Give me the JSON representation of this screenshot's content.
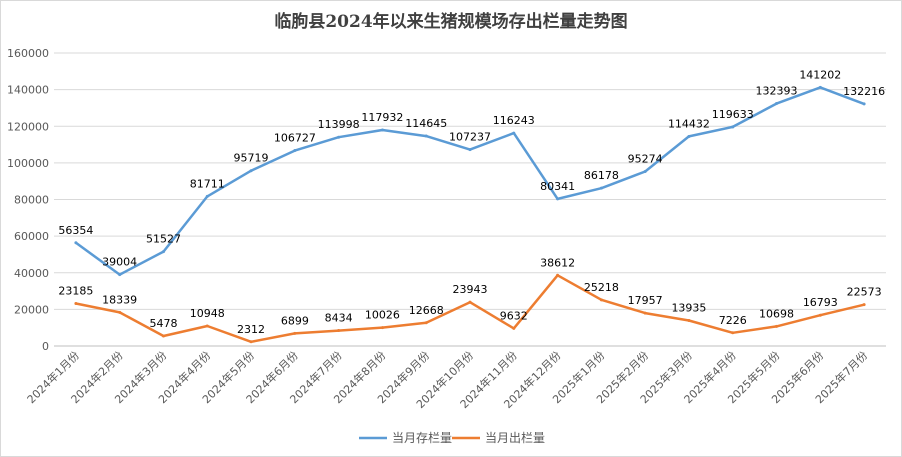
{
  "chart_data": {
    "type": "line",
    "title": "临朐县2024年以来生猪规模场存出栏量走势图",
    "xlabel": "",
    "ylabel": "",
    "ylim": [
      0,
      160000
    ],
    "yticks": [
      0,
      20000,
      40000,
      60000,
      80000,
      100000,
      120000,
      140000,
      160000
    ],
    "grid": true,
    "legend_position": "bottom",
    "categories": [
      "2024年1月份",
      "2024年2月份",
      "2024年3月份",
      "2024年4月份",
      "2024年5月份",
      "2024年6月份",
      "2024年7月份",
      "2024年8月份",
      "2024年9月份",
      "2024年10月份",
      "2024年11月份",
      "2024年12月份",
      "2025年1月份",
      "2025年2月份",
      "2025年3月份",
      "2025年4月份",
      "2025年5月份",
      "2025年6月份",
      "2025年7月份"
    ],
    "series": [
      {
        "name": "当月存栏量",
        "color": "#5b9bd5",
        "values": [
          56354,
          39004,
          51527,
          81711,
          95719,
          106727,
          113998,
          117932,
          114645,
          107237,
          116243,
          80341,
          86178,
          95274,
          114432,
          119633,
          132393,
          141202,
          132216
        ]
      },
      {
        "name": "当月出栏量",
        "color": "#ed7d31",
        "values": [
          23185,
          18339,
          5478,
          10948,
          2312,
          6899,
          8434,
          10026,
          12668,
          23943,
          9632,
          38612,
          25218,
          17957,
          13935,
          7226,
          10698,
          16793,
          22573
        ]
      }
    ]
  }
}
